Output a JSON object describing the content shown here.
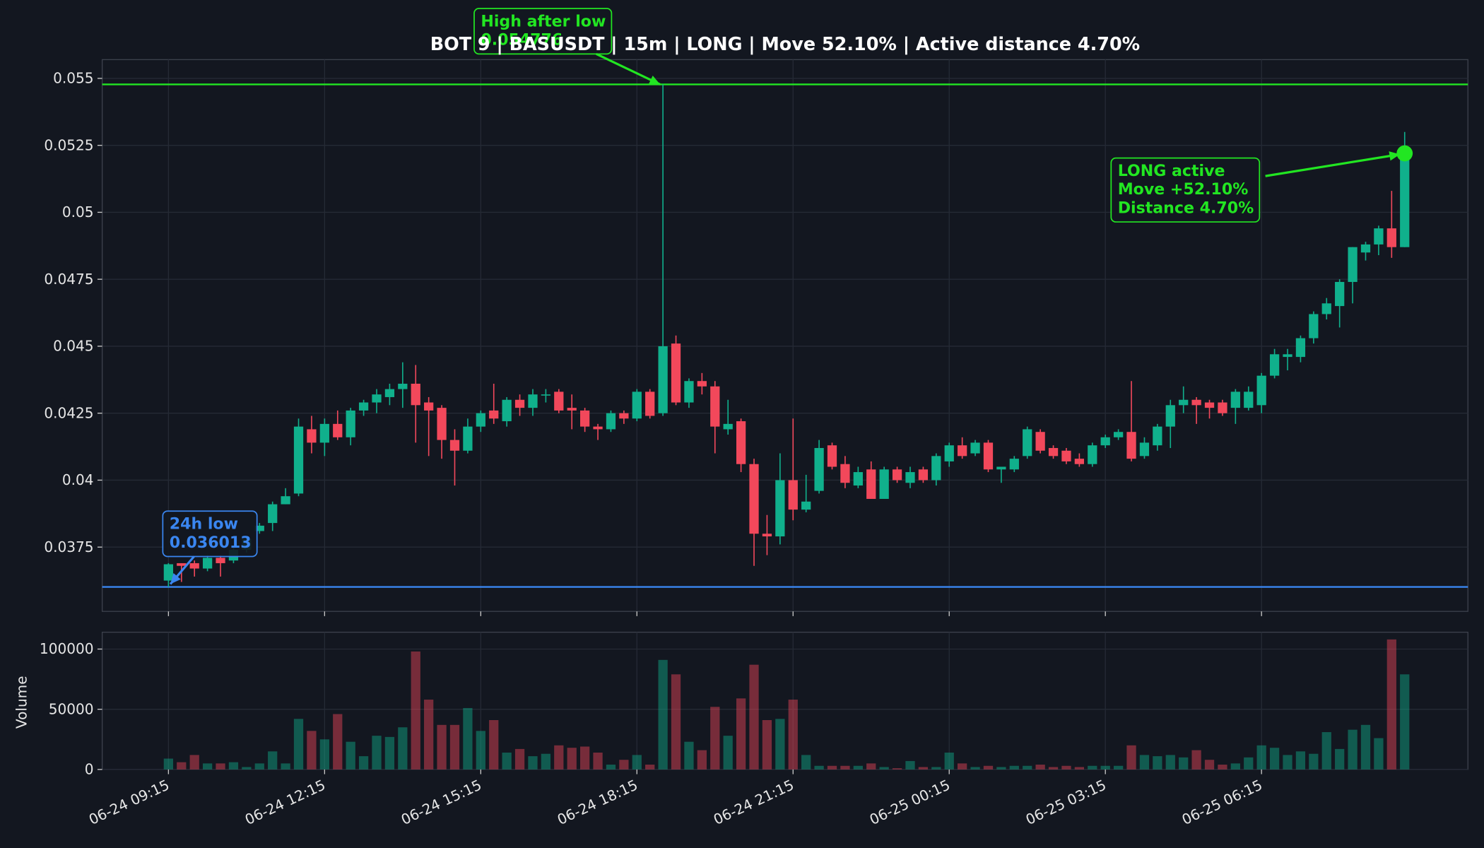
{
  "chart_data": {
    "type": "candlestick",
    "title": "BOT 9 | BASUSDT | 15m | LONG | Move 52.10% | Active distance 4.70%",
    "categories": [
      "06-24 09:15",
      null,
      null,
      null,
      null,
      null,
      null,
      null,
      null,
      null,
      null,
      null,
      "06-24 12:15",
      null,
      null,
      null,
      null,
      null,
      null,
      null,
      null,
      null,
      null,
      null,
      "06-24 15:15",
      null,
      null,
      null,
      null,
      null,
      null,
      null,
      null,
      null,
      null,
      null,
      "06-24 18:15",
      null,
      null,
      null,
      null,
      null,
      null,
      null,
      null,
      null,
      null,
      null,
      "06-24 21:15",
      null,
      null,
      null,
      null,
      null,
      null,
      null,
      null,
      null,
      null,
      null,
      "06-25 00:15",
      null,
      null,
      null,
      null,
      null,
      null,
      null,
      null,
      null,
      null,
      null,
      "06-25 03:15",
      null,
      null,
      null,
      null,
      null,
      null,
      null,
      null,
      null,
      null,
      null,
      "06-25 06:15",
      null,
      null,
      null,
      null,
      null,
      null,
      null,
      null,
      null,
      null,
      null
    ],
    "open": [
      0.03625,
      0.0369,
      0.0369,
      0.0367,
      0.0371,
      0.037,
      0.0374,
      0.0381,
      0.0384,
      0.0391,
      0.0395,
      0.0419,
      0.0414,
      0.0421,
      0.0416,
      0.0426,
      0.0429,
      0.0431,
      0.0434,
      0.0436,
      0.0429,
      0.0427,
      0.0415,
      0.0411,
      0.042,
      0.0426,
      0.0422,
      0.043,
      0.0427,
      0.0432,
      0.0433,
      0.0427,
      0.0426,
      0.042,
      0.0419,
      0.0425,
      0.0423,
      0.0433,
      0.0425,
      0.0451,
      0.0429,
      0.0437,
      0.0435,
      0.0419,
      0.0422,
      0.0406,
      0.038,
      0.0379,
      0.04,
      0.0389,
      0.0396,
      0.0413,
      0.0406,
      0.0398,
      0.0404,
      0.0393,
      0.0404,
      0.0399,
      0.0404,
      0.04,
      0.0407,
      0.0413,
      0.041,
      0.0414,
      0.0404,
      0.0404,
      0.0409,
      0.0418,
      0.0412,
      0.0411,
      0.0408,
      0.0406,
      0.0413,
      0.0416,
      0.0418,
      0.0409,
      0.0413,
      0.042,
      0.0428,
      0.043,
      0.0429,
      0.0429,
      0.0427,
      0.0427,
      0.0428,
      0.0439,
      0.0446,
      0.0446,
      0.0453,
      0.0462,
      0.0465,
      0.0474,
      0.0485,
      0.0488,
      0.0494,
      0.0487
    ],
    "high": [
      0.0369,
      0.0369,
      0.037,
      0.0372,
      0.0372,
      0.0375,
      0.0379,
      0.0384,
      0.0392,
      0.0397,
      0.0423,
      0.0424,
      0.0423,
      0.0426,
      0.0427,
      0.043,
      0.0434,
      0.0436,
      0.0444,
      0.0443,
      0.0431,
      0.0428,
      0.0419,
      0.0423,
      0.0426,
      0.0436,
      0.0431,
      0.0432,
      0.0434,
      0.0434,
      0.0434,
      0.0432,
      0.0427,
      0.0421,
      0.0426,
      0.0426,
      0.0434,
      0.0434,
      0.054776,
      0.0454,
      0.0438,
      0.044,
      0.0437,
      0.043,
      0.0423,
      0.0408,
      0.0387,
      0.041,
      0.0423,
      0.0402,
      0.0415,
      0.0414,
      0.0409,
      0.0405,
      0.0407,
      0.0405,
      0.0405,
      0.0405,
      0.0405,
      0.041,
      0.0414,
      0.0416,
      0.0415,
      0.0415,
      0.0405,
      0.0409,
      0.042,
      0.0419,
      0.0413,
      0.0412,
      0.041,
      0.0414,
      0.0417,
      0.0419,
      0.0437,
      0.0416,
      0.0421,
      0.043,
      0.0435,
      0.0431,
      0.043,
      0.043,
      0.0434,
      0.0435,
      0.044,
      0.0449,
      0.0449,
      0.0454,
      0.0463,
      0.0468,
      0.0475,
      0.0487,
      0.0489,
      0.0495,
      0.0508,
      0.053
    ],
    "low": [
      0.036013,
      0.0362,
      0.0364,
      0.0366,
      0.0364,
      0.0369,
      0.0373,
      0.038,
      0.0381,
      0.0391,
      0.0394,
      0.041,
      0.0409,
      0.0415,
      0.0413,
      0.0424,
      0.0425,
      0.0428,
      0.0427,
      0.0414,
      0.0409,
      0.0408,
      0.0398,
      0.041,
      0.0418,
      0.0421,
      0.042,
      0.0424,
      0.0424,
      0.0429,
      0.0425,
      0.0419,
      0.0418,
      0.0415,
      0.0418,
      0.0421,
      0.0422,
      0.0423,
      0.0424,
      0.0428,
      0.0427,
      0.0432,
      0.041,
      0.0417,
      0.0403,
      0.0368,
      0.0372,
      0.0376,
      0.0385,
      0.0388,
      0.0395,
      0.0404,
      0.0397,
      0.0397,
      0.0393,
      0.0393,
      0.0399,
      0.0397,
      0.0399,
      0.0398,
      0.0405,
      0.0408,
      0.0409,
      0.0403,
      0.0399,
      0.0403,
      0.0408,
      0.041,
      0.0408,
      0.0406,
      0.0405,
      0.0405,
      0.0412,
      0.0415,
      0.0407,
      0.0408,
      0.0411,
      0.0412,
      0.0425,
      0.0421,
      0.0423,
      0.0424,
      0.0421,
      0.0426,
      0.0425,
      0.0438,
      0.0441,
      0.0444,
      0.0451,
      0.046,
      0.0457,
      0.0466,
      0.0482,
      0.0484,
      0.0483,
      0.0487
    ],
    "close": [
      0.03686,
      0.0368,
      0.0367,
      0.0371,
      0.0369,
      0.0374,
      0.0378,
      0.0383,
      0.0391,
      0.0394,
      0.042,
      0.0414,
      0.0421,
      0.0416,
      0.0426,
      0.0429,
      0.0432,
      0.0434,
      0.0436,
      0.0428,
      0.0426,
      0.0415,
      0.0411,
      0.042,
      0.0425,
      0.0423,
      0.043,
      0.0427,
      0.0432,
      0.0432,
      0.0426,
      0.0426,
      0.042,
      0.0419,
      0.0425,
      0.0423,
      0.0433,
      0.0424,
      0.045,
      0.0429,
      0.0437,
      0.0435,
      0.042,
      0.0421,
      0.0406,
      0.038,
      0.0379,
      0.04,
      0.0389,
      0.0392,
      0.0412,
      0.0405,
      0.0399,
      0.0403,
      0.0393,
      0.0404,
      0.04,
      0.0403,
      0.04,
      0.0409,
      0.0413,
      0.0409,
      0.0414,
      0.0404,
      0.0405,
      0.0408,
      0.0419,
      0.0411,
      0.0409,
      0.0407,
      0.0406,
      0.0413,
      0.0416,
      0.0418,
      0.0408,
      0.0414,
      0.042,
      0.0428,
      0.043,
      0.0428,
      0.0427,
      0.0425,
      0.0433,
      0.0433,
      0.0439,
      0.0447,
      0.0447,
      0.0453,
      0.0462,
      0.0466,
      0.0474,
      0.0487,
      0.0488,
      0.0494,
      0.0487,
      0.0522
    ],
    "up_color": "#10b08c",
    "down_color": "#f2485b",
    "ylim": [
      0.0351,
      0.0557
    ],
    "yticks": [
      0.0375,
      0.04,
      0.0425,
      0.045,
      0.0475,
      0.05,
      0.0525,
      0.055
    ],
    "grid": true,
    "levels": [
      {
        "label": "High after low",
        "value": 0.054776,
        "color": "#22e622"
      },
      {
        "label": "24h low",
        "value": 0.036013,
        "color": "#3a86f0"
      }
    ],
    "status": {
      "lines": [
        "LONG active",
        "Move +52.10%",
        "Distance 4.70%"
      ],
      "color": "#22e622"
    },
    "volume": {
      "ylabel": "Volume",
      "values": [
        9000,
        6000,
        12000,
        5000,
        5000,
        6000,
        2000,
        5000,
        15000,
        5000,
        42000,
        32000,
        25000,
        46000,
        23000,
        11000,
        28000,
        27000,
        35000,
        98000,
        58000,
        37000,
        37000,
        51000,
        32000,
        41000,
        14000,
        17000,
        11000,
        13000,
        20000,
        18000,
        19000,
        14000,
        4000,
        8000,
        12000,
        4000,
        91000,
        79000,
        23000,
        16000,
        52000,
        28000,
        59000,
        87000,
        41000,
        42000,
        58000,
        12000,
        3000,
        3000,
        3000,
        3000,
        5000,
        2000,
        1000,
        7000,
        2000,
        2000,
        14000,
        5000,
        2000,
        3000,
        2000,
        3000,
        3000,
        4000,
        2000,
        3000,
        2000,
        3000,
        3000,
        3000,
        20000,
        12000,
        11000,
        12000,
        10000,
        16000,
        8000,
        4000,
        5000,
        10000,
        20000,
        18000,
        12000,
        15000,
        13000,
        31000,
        17000,
        33000,
        37000,
        26000,
        108000,
        79000
      ],
      "ylim": [
        0,
        114000
      ],
      "yticks": [
        0,
        50000,
        100000
      ]
    }
  }
}
